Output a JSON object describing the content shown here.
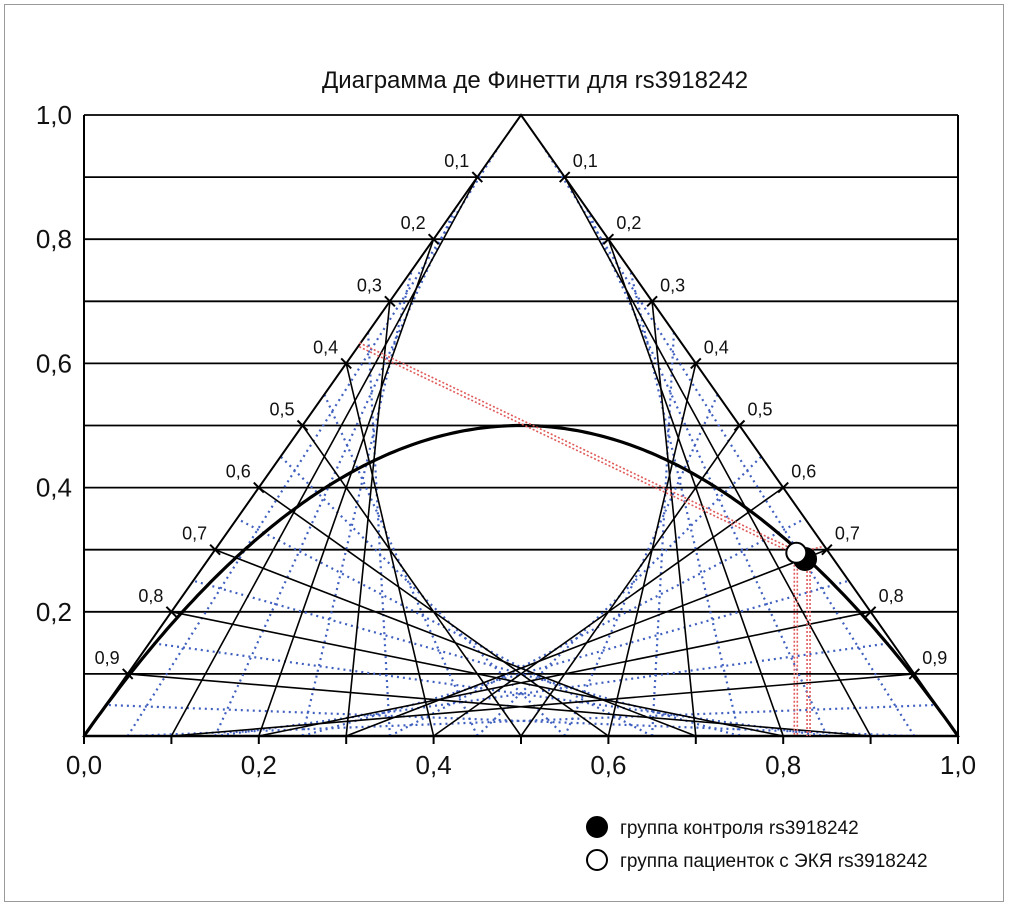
{
  "chart_data": {
    "type": "scatter",
    "title": "Диаграмма де Финетти для rs3918242",
    "xlabel": "",
    "ylabel": "",
    "xlim": [
      0,
      1
    ],
    "ylim": [
      0,
      1
    ],
    "x_ticks": [
      "0,0",
      "0,2",
      "0,4",
      "0,6",
      "0,8",
      "1,0"
    ],
    "y_ticks": [
      "0,2",
      "0,4",
      "0,6",
      "0,8",
      "1,0"
    ],
    "side_ticks": [
      "0,1",
      "0,2",
      "0,3",
      "0,4",
      "0,5",
      "0,6",
      "0,7",
      "0,8",
      "0,9"
    ],
    "grid": true,
    "hardy_weinberg_curve": true,
    "series": [
      {
        "name": "группа контроля rs3918242",
        "marker": "filled-circle",
        "color": "#000000",
        "x": 0.825,
        "y": 0.285
      },
      {
        "name": "группа пациенток с ЭКЯ rs3918242",
        "marker": "open-circle",
        "color": "#ffffff",
        "x": 0.815,
        "y": 0.295
      }
    ],
    "guide_color": "#e05a5a",
    "inner_grid_color": "#4060c0",
    "legend": "bottom-right"
  }
}
